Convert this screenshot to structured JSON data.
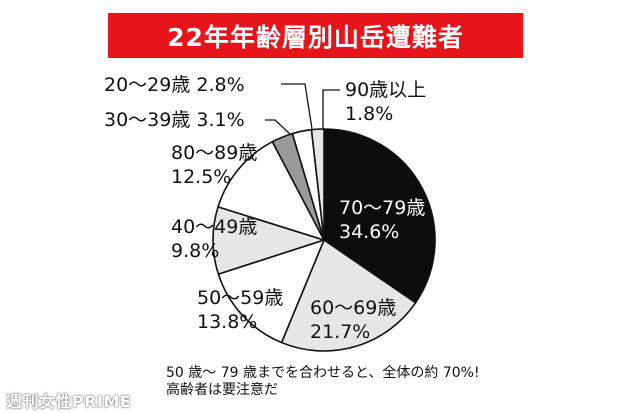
{
  "title": "22年年齢層別山岳遭難者",
  "chart_data": {
    "type": "pie",
    "title": "22年年齢層別山岳遭難者",
    "series": [
      {
        "label_age": "70～79歳",
        "label_pct": "34.6%",
        "value": 34.6,
        "color": "#0d0d0d"
      },
      {
        "label_age": "60～69歳",
        "label_pct": "21.7%",
        "value": 21.7,
        "color": "#e6e6e6"
      },
      {
        "label_age": "50～59歳",
        "label_pct": "13.8%",
        "value": 13.8,
        "color": "#ffffff"
      },
      {
        "label_age": "40～49歳",
        "label_pct": "9.8%",
        "value": 9.8,
        "color": "#e6e6e6"
      },
      {
        "label_age": "80～89歳",
        "label_pct": "12.5%",
        "value": 12.5,
        "color": "#ffffff"
      },
      {
        "label_age": "30～39歳",
        "label_pct": "3.1%",
        "value": 3.1,
        "color": "#9a9a9a"
      },
      {
        "label_age": "20～29歳",
        "label_pct": "2.8%",
        "value": 2.8,
        "color": "#ffffff"
      },
      {
        "label_age": "90歳以上",
        "label_pct": "1.8%",
        "value": 1.8,
        "color": "#e6e6e6"
      }
    ]
  },
  "note": {
    "line1": "50 歳～ 79 歳までを合わせると、全体の約 70%!",
    "line2": "高齢者は要注意だ"
  },
  "watermark": "週刊女性PRIME"
}
